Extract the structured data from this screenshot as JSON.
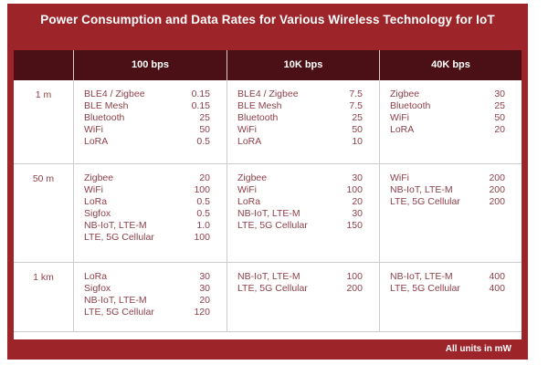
{
  "chart_data": {
    "type": "table",
    "title": "Power Consumption and Data Rates for Various Wireless Technology for IoT",
    "units_note": "All units in mW",
    "column_headers": [
      "",
      "100 bps",
      "10K bps",
      "40K bps"
    ],
    "row_headers": [
      "1 m",
      "50 m",
      "1 km"
    ],
    "rows": [
      {
        "distance": "1 m",
        "cells": [
          [
            [
              "BLE4 / Zigbee",
              "0.15"
            ],
            [
              "BLE Mesh",
              "0.15"
            ],
            [
              "Bluetooth",
              "25"
            ],
            [
              "WiFi",
              "50"
            ],
            [
              "LoRA",
              "0.5"
            ]
          ],
          [
            [
              "BLE4 / Zigbee",
              "7.5"
            ],
            [
              "BLE Mesh",
              "7.5"
            ],
            [
              "Bluetooth",
              "25"
            ],
            [
              "WiFi",
              "50"
            ],
            [
              "LoRA",
              "10"
            ]
          ],
          [
            [
              "Zigbee",
              "30"
            ],
            [
              "Bluetooth",
              "25"
            ],
            [
              "WiFi",
              "50"
            ],
            [
              "LoRA",
              "20"
            ]
          ]
        ]
      },
      {
        "distance": "50 m",
        "cells": [
          [
            [
              "Zigbee",
              "20"
            ],
            [
              "WiFi",
              "100"
            ],
            [
              "LoRa",
              "0.5"
            ],
            [
              "Sigfox",
              "0.5"
            ],
            [
              "NB-IoT, LTE-M",
              "1.0"
            ],
            [
              "LTE, 5G Cellular",
              "100"
            ]
          ],
          [
            [
              "Zigbee",
              "30"
            ],
            [
              "WiFi",
              "100"
            ],
            [
              "LoRa",
              "20"
            ],
            [
              "NB-IoT, LTE-M",
              "30"
            ],
            [
              "LTE, 5G Cellular",
              "150"
            ]
          ],
          [
            [
              "WiFi",
              "200"
            ],
            [
              "NB-IoT, LTE-M",
              "200"
            ],
            [
              "LTE, 5G Cellular",
              "200"
            ]
          ]
        ]
      },
      {
        "distance": "1 km",
        "cells": [
          [
            [
              "LoRa",
              "30"
            ],
            [
              "Sigfox",
              "30"
            ],
            [
              "NB-IoT, LTE-M",
              "20"
            ],
            [
              "LTE, 5G Cellular",
              "120"
            ]
          ],
          [
            [
              "NB-IoT, LTE-M",
              "100"
            ],
            [
              "LTE, 5G Cellular",
              "200"
            ]
          ],
          [
            [
              "NB-IoT, LTE-M",
              "400"
            ],
            [
              "LTE, 5G Cellular",
              "400"
            ]
          ]
        ]
      }
    ],
    "colors": {
      "frame_red": "#9d2429",
      "header_maroon": "#4a1016",
      "cell_text": "#8e3f48",
      "grid_line": "#cccccc",
      "title_text": "#ffffff"
    },
    "layout_hints": {
      "legend_position": "none",
      "grid": "on"
    }
  }
}
